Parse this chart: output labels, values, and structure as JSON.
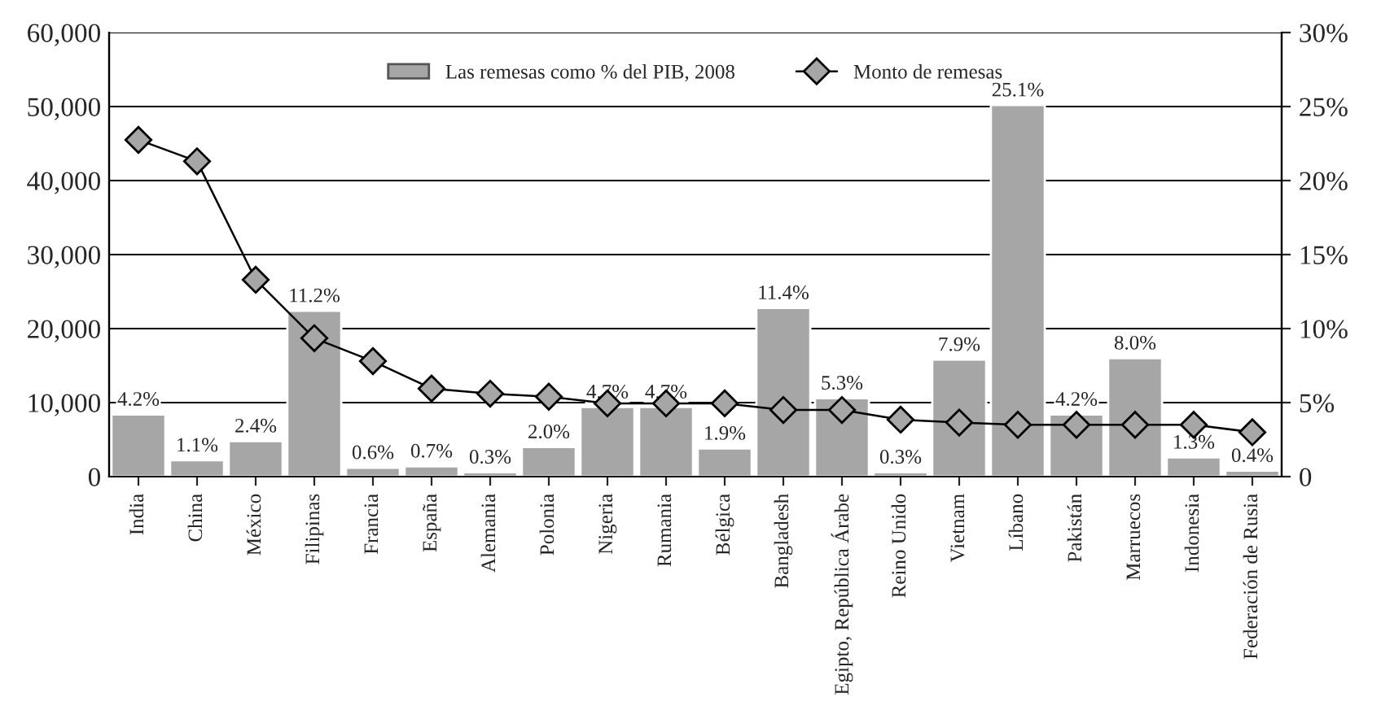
{
  "chart_data": {
    "type": "bar",
    "categories": [
      "India",
      "China",
      "México",
      "Filipinas",
      "Francia",
      "España",
      "Alemania",
      "Polonia",
      "Nigeria",
      "Rumania",
      "Bélgica",
      "Bangladesh",
      "Egipto, República Árabe",
      "Reino Unido",
      "Vietnam",
      "Líbano",
      "Pakistán",
      "Marruecos",
      "Indonesia",
      "Federación de Rusia"
    ],
    "series": [
      {
        "name": "Las remesas como % del PIB, 2008",
        "axis": "y2",
        "color": "#a6a6a6",
        "values": [
          4.2,
          1.1,
          2.4,
          11.2,
          0.6,
          0.7,
          0.3,
          2.0,
          4.7,
          4.7,
          1.9,
          11.4,
          5.3,
          0.3,
          7.9,
          25.1,
          4.2,
          8.0,
          1.3,
          0.4
        ],
        "value_labels": [
          "4.2%",
          "1.1%",
          "2.4%",
          "11.2%",
          "0.6%",
          "0.7%",
          "0.3%",
          "2.0%",
          "4.7%",
          "4.7%",
          "1.9%",
          "11.4%",
          "5.3%",
          "0.3%",
          "7.9%",
          "25.1%",
          "4.2%",
          "8.0%",
          "1.3%",
          "0.4%"
        ]
      },
      {
        "name": "Monto de remesas",
        "type": "line",
        "axis": "y",
        "color": "#a6a6a6",
        "marker": "diamond",
        "values": [
          45500,
          42600,
          26600,
          18700,
          15600,
          11900,
          11200,
          10800,
          9900,
          9900,
          9900,
          9000,
          9000,
          7700,
          7300,
          7000,
          7000,
          7000,
          7000,
          6000
        ]
      }
    ],
    "ylim": [
      0,
      60000
    ],
    "yticks": [
      {
        "value": 0,
        "label": "0"
      },
      {
        "value": 10000,
        "label": "10,000"
      },
      {
        "value": 20000,
        "label": "20,000"
      },
      {
        "value": 30000,
        "label": "30,000"
      },
      {
        "value": 40000,
        "label": "40,000"
      },
      {
        "value": 50000,
        "label": "50,000"
      },
      {
        "value": 60000,
        "label": "60,000"
      }
    ],
    "y2lim": [
      0,
      30
    ],
    "y2ticks": [
      {
        "value": 0,
        "label": "0"
      },
      {
        "value": 5,
        "label": "5%"
      },
      {
        "value": 10,
        "label": "10%"
      },
      {
        "value": 15,
        "label": "15%"
      },
      {
        "value": 20,
        "label": "20%"
      },
      {
        "value": 25,
        "label": "25%"
      },
      {
        "value": 30,
        "label": "30%"
      }
    ],
    "grid": "y",
    "legend": "top"
  }
}
